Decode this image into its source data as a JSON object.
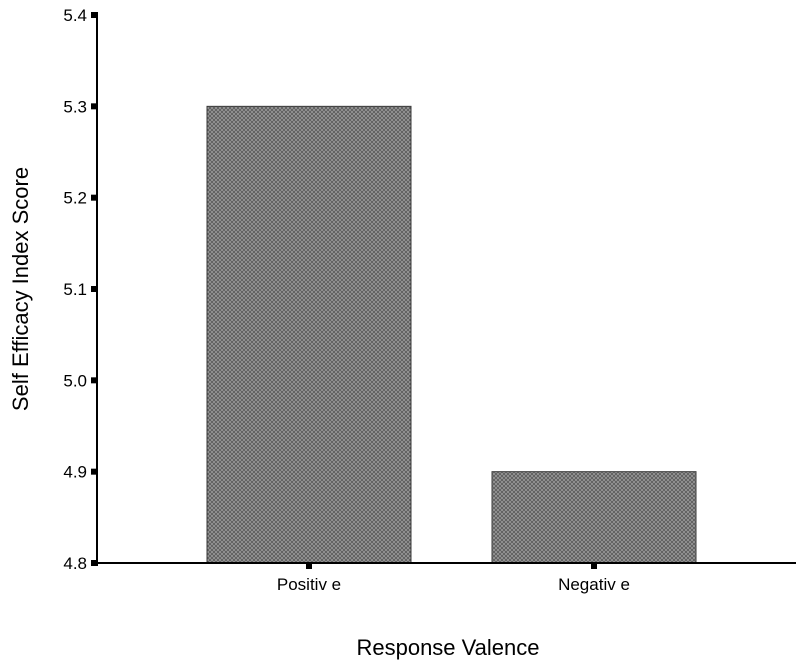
{
  "chart_data": {
    "type": "bar",
    "categories": [
      "Positiv e",
      "Negativ e"
    ],
    "values": [
      5.3,
      4.9
    ],
    "title": "",
    "xlabel": "Response Valence",
    "ylabel": "Self Efficacy Index Score",
    "ylim": [
      4.8,
      5.4
    ],
    "yticks": [
      4.8,
      4.9,
      5.0,
      5.1,
      5.2,
      5.3,
      5.4
    ],
    "ytick_labels": [
      "4.8",
      "4.9",
      "5.0",
      "5.1",
      "5.2",
      "5.3",
      "5.4"
    ],
    "grid": false,
    "legend": "none",
    "bar_pattern": "dark gray crosshatch",
    "colors": {
      "bar_fill": "#585858",
      "bar_hatch": "#9a9a9a",
      "axis": "#000000"
    }
  }
}
